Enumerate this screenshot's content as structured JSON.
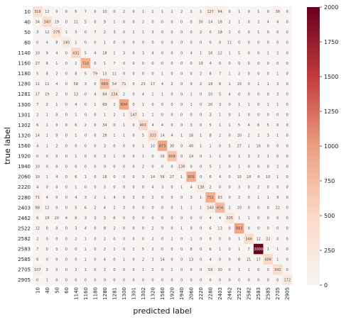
{
  "chart_data": {
    "type": "heatmap",
    "xlabel": "predicted label",
    "ylabel": "true label",
    "labels": [
      "10",
      "40",
      "50",
      "60",
      "1140",
      "1160",
      "1180",
      "1280",
      "1281",
      "1300",
      "1301",
      "1302",
      "1320",
      "1560",
      "1920",
      "1940",
      "2060",
      "2220",
      "2280",
      "2403",
      "2462",
      "2522",
      "2582",
      "2583",
      "2585",
      "2705",
      "2905"
    ],
    "matrix": [
      [
        316,
        12,
        0,
        0,
        5,
        7,
        0,
        10,
        0,
        2,
        0,
        1,
        1,
        1,
        1,
        2,
        3,
        1,
        127,
        94,
        0,
        1,
        0,
        1,
        0,
        38,
        0
      ],
      [
        34,
        340,
        19,
        0,
        11,
        5,
        0,
        9,
        1,
        0,
        0,
        2,
        0,
        0,
        0,
        0,
        0,
        30,
        14,
        18,
        1,
        1,
        0,
        2,
        4,
        4,
        0
      ],
      [
        3,
        12,
        275,
        1,
        3,
        0,
        7,
        2,
        3,
        0,
        1,
        1,
        3,
        0,
        0,
        0,
        0,
        2,
        0,
        18,
        1,
        0,
        0,
        1,
        0,
        0,
        0
      ],
      [
        0,
        4,
        8,
        140,
        1,
        0,
        0,
        1,
        0,
        0,
        0,
        0,
        0,
        0,
        0,
        0,
        0,
        0,
        0,
        0,
        11,
        0,
        0,
        0,
        0,
        0,
        0
      ],
      [
        10,
        9,
        4,
        0,
        431,
        5,
        4,
        18,
        1,
        3,
        0,
        3,
        4,
        0,
        0,
        0,
        4,
        1,
        16,
        12,
        1,
        5,
        0,
        0,
        1,
        2,
        0
      ],
      [
        27,
        8,
        1,
        0,
        2,
        722,
        0,
        1,
        7,
        0,
        0,
        0,
        0,
        0,
        0,
        0,
        0,
        19,
        4,
        0,
        0,
        0,
        0,
        0,
        0,
        0,
        0
      ],
      [
        5,
        8,
        2,
        0,
        8,
        5,
        79,
        13,
        11,
        0,
        0,
        0,
        0,
        1,
        0,
        0,
        0,
        2,
        8,
        7,
        1,
        2,
        0,
        0,
        0,
        1,
        0
      ],
      [
        11,
        11,
        4,
        0,
        58,
        3,
        0,
        665,
        54,
        71,
        0,
        23,
        17,
        4,
        2,
        0,
        9,
        2,
        18,
        6,
        1,
        10,
        0,
        1,
        1,
        3,
        0
      ],
      [
        17,
        19,
        2,
        0,
        13,
        0,
        4,
        84,
        234,
        2,
        0,
        4,
        1,
        1,
        0,
        0,
        1,
        0,
        10,
        5,
        4,
        0,
        0,
        0,
        0,
        3,
        0
      ],
      [
        7,
        2,
        1,
        0,
        4,
        0,
        1,
        69,
        2,
        894,
        0,
        1,
        0,
        0,
        0,
        0,
        1,
        0,
        20,
        3,
        0,
        1,
        1,
        0,
        1,
        1,
        0
      ],
      [
        2,
        1,
        0,
        0,
        1,
        0,
        0,
        1,
        2,
        1,
        147,
        1,
        1,
        0,
        0,
        0,
        0,
        0,
        3,
        1,
        0,
        1,
        0,
        0,
        0,
        0,
        0
      ],
      [
        6,
        1,
        0,
        0,
        6,
        2,
        0,
        34,
        0,
        1,
        0,
        401,
        4,
        4,
        0,
        0,
        3,
        0,
        5,
        1,
        1,
        5,
        4,
        6,
        5,
        0,
        0
      ],
      [
        14,
        1,
        0,
        0,
        1,
        0,
        0,
        28,
        1,
        1,
        0,
        5,
        333,
        14,
        4,
        1,
        16,
        1,
        8,
        2,
        0,
        10,
        2,
        2,
        3,
        1,
        0
      ],
      [
        4,
        1,
        2,
        0,
        0,
        0,
        0,
        3,
        0,
        0,
        0,
        1,
        10,
        873,
        30,
        0,
        40,
        1,
        1,
        0,
        5,
        27,
        1,
        16,
        0,
        0,
        0
      ],
      [
        0,
        0,
        0,
        0,
        1,
        0,
        0,
        3,
        1,
        0,
        0,
        1,
        0,
        16,
        608,
        0,
        14,
        0,
        1,
        1,
        0,
        1,
        3,
        2,
        1,
        0,
        0
      ],
      [
        10,
        0,
        0,
        0,
        0,
        0,
        0,
        0,
        0,
        0,
        0,
        2,
        0,
        0,
        0,
        138,
        0,
        0,
        5,
        1,
        0,
        1,
        0,
        0,
        0,
        2,
        0
      ],
      [
        10,
        1,
        4,
        0,
        6,
        1,
        0,
        18,
        0,
        0,
        0,
        3,
        14,
        56,
        27,
        1,
        805,
        0,
        6,
        4,
        0,
        10,
        18,
        4,
        10,
        1,
        0
      ],
      [
        4,
        0,
        0,
        0,
        1,
        0,
        0,
        3,
        0,
        0,
        0,
        0,
        4,
        3,
        0,
        1,
        4,
        138,
        2,
        0,
        0,
        3,
        0,
        2,
        0,
        0,
        0
      ],
      [
        71,
        4,
        0,
        0,
        4,
        3,
        2,
        1,
        4,
        0,
        3,
        0,
        2,
        0,
        0,
        0,
        3,
        1,
        752,
        93,
        0,
        2,
        0,
        1,
        1,
        9,
        0
      ],
      [
        88,
        12,
        0,
        0,
        5,
        6,
        2,
        4,
        2,
        3,
        0,
        0,
        0,
        0,
        0,
        1,
        1,
        1,
        140,
        656,
        2,
        10,
        0,
        0,
        0,
        22,
        0
      ],
      [
        6,
        18,
        20,
        4,
        6,
        3,
        3,
        3,
        6,
        0,
        0,
        0,
        0,
        0,
        0,
        0,
        0,
        0,
        4,
        4,
        205,
        1,
        1,
        0,
        0,
        0,
        0
      ],
      [
        12,
        0,
        0,
        0,
        3,
        4,
        0,
        8,
        2,
        0,
        0,
        0,
        2,
        9,
        0,
        1,
        9,
        0,
        6,
        13,
        0,
        883,
        0,
        0,
        0,
        0,
        0
      ],
      [
        2,
        0,
        0,
        0,
        2,
        1,
        0,
        2,
        0,
        0,
        0,
        0,
        2,
        0,
        2,
        0,
        1,
        0,
        0,
        0,
        0,
        1,
        346,
        12,
        32,
        0,
        0
      ],
      [
        7,
        0,
        0,
        0,
        0,
        1,
        0,
        2,
        1,
        0,
        1,
        5,
        2,
        0,
        0,
        0,
        8,
        0,
        6,
        1,
        0,
        1,
        7,
        2000,
        1,
        1,
        0
      ],
      [
        6,
        0,
        0,
        0,
        0,
        1,
        0,
        4,
        0,
        1,
        0,
        2,
        3,
        14,
        0,
        0,
        13,
        0,
        4,
        0,
        0,
        8,
        21,
        17,
        404,
        1,
        0
      ],
      [
        107,
        3,
        0,
        0,
        2,
        1,
        0,
        2,
        0,
        0,
        0,
        1,
        2,
        0,
        1,
        0,
        0,
        0,
        59,
        30,
        0,
        1,
        1,
        0,
        0,
        342,
        0
      ],
      [
        0,
        1,
        0,
        0,
        0,
        0,
        0,
        0,
        0,
        0,
        0,
        0,
        0,
        0,
        0,
        0,
        0,
        0,
        0,
        0,
        0,
        0,
        0,
        0,
        0,
        0,
        172
      ]
    ],
    "colormap": "RdBu_r (white to dark red)",
    "vmin": 0,
    "vmax": 2000,
    "colorbar_ticks": [
      0,
      250,
      500,
      750,
      1000,
      1250,
      1500,
      1750,
      2000
    ],
    "colors": {
      "low": "#f7f4f3",
      "mid": "#ec9f80",
      "high": "#67001f"
    }
  }
}
